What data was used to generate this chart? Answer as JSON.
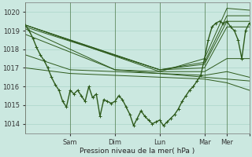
{
  "bg_color": "#cbe8e0",
  "grid_color": "#aad4c8",
  "line_color": "#2d5a1b",
  "xlabel": "Pression niveau de la mer( hPa )",
  "ylim": [
    1013.5,
    1020.5
  ],
  "xlim": [
    0,
    120
  ],
  "yticks": [
    1014,
    1015,
    1016,
    1017,
    1018,
    1019,
    1020
  ],
  "xtick_positions": [
    24,
    48,
    72,
    96,
    108,
    120
  ],
  "xtick_labels": [
    "Sam",
    "Dim",
    "Lun",
    "Mar",
    "Mer",
    ""
  ],
  "vlines_x": [
    0,
    24,
    48,
    72,
    96,
    108
  ],
  "main_line": [
    [
      0,
      1019.3
    ],
    [
      2,
      1019.0
    ],
    [
      4,
      1018.6
    ],
    [
      6,
      1018.1
    ],
    [
      8,
      1017.7
    ],
    [
      10,
      1017.4
    ],
    [
      12,
      1017.0
    ],
    [
      14,
      1016.5
    ],
    [
      16,
      1016.1
    ],
    [
      18,
      1015.8
    ],
    [
      20,
      1015.2
    ],
    [
      22,
      1014.9
    ],
    [
      24,
      1015.8
    ],
    [
      26,
      1015.6
    ],
    [
      28,
      1015.8
    ],
    [
      30,
      1015.5
    ],
    [
      32,
      1015.2
    ],
    [
      34,
      1016.0
    ],
    [
      36,
      1015.4
    ],
    [
      38,
      1015.6
    ],
    [
      40,
      1014.4
    ],
    [
      42,
      1015.3
    ],
    [
      44,
      1015.2
    ],
    [
      46,
      1015.1
    ],
    [
      48,
      1015.2
    ],
    [
      50,
      1015.5
    ],
    [
      52,
      1015.3
    ],
    [
      54,
      1014.9
    ],
    [
      56,
      1014.5
    ],
    [
      58,
      1013.9
    ],
    [
      60,
      1014.3
    ],
    [
      62,
      1014.7
    ],
    [
      64,
      1014.4
    ],
    [
      66,
      1014.2
    ],
    [
      68,
      1014.0
    ],
    [
      70,
      1014.1
    ],
    [
      72,
      1014.2
    ],
    [
      74,
      1013.9
    ],
    [
      76,
      1014.1
    ],
    [
      78,
      1014.3
    ],
    [
      80,
      1014.5
    ],
    [
      82,
      1014.8
    ],
    [
      84,
      1015.2
    ],
    [
      86,
      1015.5
    ],
    [
      88,
      1015.8
    ],
    [
      90,
      1016.0
    ],
    [
      92,
      1016.3
    ],
    [
      94,
      1016.6
    ],
    [
      96,
      1017.5
    ],
    [
      98,
      1018.5
    ],
    [
      100,
      1019.2
    ],
    [
      102,
      1019.4
    ],
    [
      104,
      1019.5
    ],
    [
      106,
      1019.4
    ],
    [
      108,
      1019.5
    ],
    [
      110,
      1019.2
    ],
    [
      112,
      1019.0
    ],
    [
      114,
      1018.5
    ],
    [
      116,
      1017.5
    ],
    [
      118,
      1019.0
    ],
    [
      120,
      1019.4
    ]
  ],
  "ensemble_lines": [
    [
      [
        0,
        1019.3
      ],
      [
        72,
        1016.8
      ],
      [
        96,
        1017.5
      ],
      [
        108,
        1020.2
      ],
      [
        120,
        1020.1
      ]
    ],
    [
      [
        0,
        1019.3
      ],
      [
        72,
        1016.9
      ],
      [
        96,
        1017.3
      ],
      [
        108,
        1019.8
      ],
      [
        120,
        1019.8
      ]
    ],
    [
      [
        0,
        1019.3
      ],
      [
        72,
        1016.9
      ],
      [
        96,
        1017.2
      ],
      [
        108,
        1019.5
      ],
      [
        120,
        1019.5
      ]
    ],
    [
      [
        0,
        1019.2
      ],
      [
        72,
        1016.9
      ],
      [
        96,
        1017.0
      ],
      [
        108,
        1019.2
      ],
      [
        120,
        1019.2
      ]
    ],
    [
      [
        0,
        1019.1
      ],
      [
        48,
        1016.9
      ],
      [
        72,
        1016.8
      ],
      [
        96,
        1016.8
      ],
      [
        108,
        1017.5
      ],
      [
        120,
        1017.5
      ]
    ],
    [
      [
        0,
        1018.8
      ],
      [
        48,
        1016.9
      ],
      [
        72,
        1016.7
      ],
      [
        96,
        1016.6
      ],
      [
        108,
        1016.8
      ],
      [
        120,
        1016.5
      ]
    ],
    [
      [
        0,
        1017.7
      ],
      [
        24,
        1016.9
      ],
      [
        48,
        1016.8
      ],
      [
        72,
        1016.7
      ],
      [
        96,
        1016.5
      ],
      [
        108,
        1016.4
      ],
      [
        120,
        1016.3
      ]
    ],
    [
      [
        0,
        1017.0
      ],
      [
        24,
        1016.7
      ],
      [
        48,
        1016.6
      ],
      [
        72,
        1016.5
      ],
      [
        96,
        1016.4
      ],
      [
        108,
        1016.2
      ],
      [
        120,
        1015.8
      ]
    ]
  ]
}
